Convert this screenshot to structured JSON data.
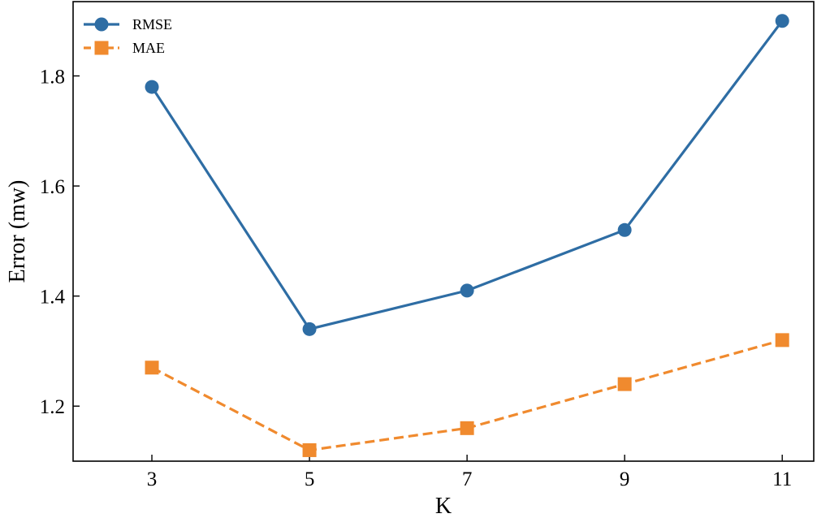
{
  "chart_data": {
    "type": "line",
    "title": "",
    "xlabel": "K",
    "ylabel": "Error (mw)",
    "x": [
      3,
      5,
      7,
      9,
      11
    ],
    "x_tick_labels": [
      "3",
      "5",
      "7",
      "9",
      "11"
    ],
    "xlim": [
      2.0,
      11.4
    ],
    "ylim": [
      1.1,
      1.935
    ],
    "y_ticks": [
      1.2,
      1.4,
      1.6,
      1.8
    ],
    "y_tick_labels": [
      "1.2",
      "1.4",
      "1.6",
      "1.8"
    ],
    "grid": false,
    "legend_position": "top-left",
    "series": [
      {
        "name": "RMSE",
        "values": [
          1.78,
          1.34,
          1.41,
          1.52,
          1.9
        ],
        "color": "#2e6da4",
        "marker": "circle",
        "line_style": "solid"
      },
      {
        "name": "MAE",
        "values": [
          1.27,
          1.12,
          1.16,
          1.24,
          1.32
        ],
        "color": "#f08a2e",
        "marker": "square",
        "line_style": "dashed"
      }
    ]
  }
}
